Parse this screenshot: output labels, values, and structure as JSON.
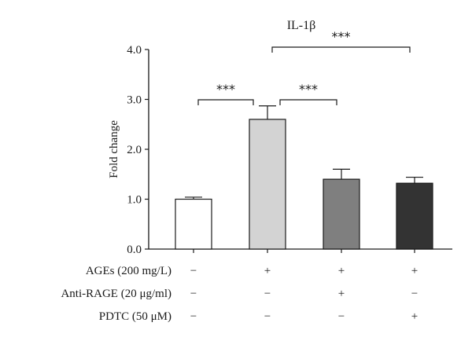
{
  "chart_data": {
    "type": "bar",
    "title": "IL-1β",
    "ylabel": "Fold change",
    "xlabel": "",
    "ylim": [
      0,
      4.0
    ],
    "yticks": [
      "0.0",
      "1.0",
      "2.0",
      "3.0",
      "4.0"
    ],
    "bars": [
      {
        "value": 1.0,
        "error": 0.04,
        "color": "#ffffff"
      },
      {
        "value": 2.6,
        "error": 0.27,
        "color": "#d3d3d3"
      },
      {
        "value": 1.4,
        "error": 0.2,
        "color": "#7f7f7f"
      },
      {
        "value": 1.32,
        "error": 0.12,
        "color": "#333333"
      }
    ],
    "treatment_rows": [
      {
        "label": "AGEs (200 mg/L)",
        "signs": [
          "−",
          "+",
          "+",
          "+"
        ]
      },
      {
        "label": "Anti-RAGE (20 μg/ml)",
        "signs": [
          "−",
          "−",
          "+",
          "−"
        ]
      },
      {
        "label": "PDTC (50 μM)",
        "signs": [
          "−",
          "−",
          "−",
          "+"
        ]
      }
    ],
    "significance": [
      {
        "from": 0,
        "to": 1,
        "label": "***"
      },
      {
        "from": 1,
        "to": 2,
        "label": "***"
      },
      {
        "from": 1,
        "to": 3,
        "label": "***"
      }
    ]
  }
}
